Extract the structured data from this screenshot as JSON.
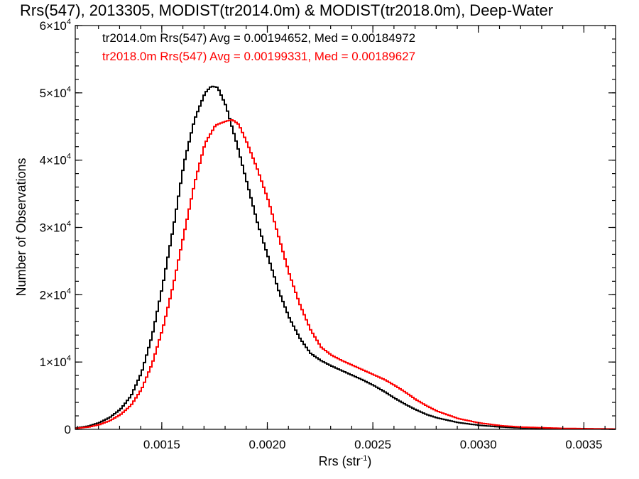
{
  "chart_data": {
    "type": "line",
    "title": "Rrs(547), 2013305, MODIST(tr2014.0m) & MODIST(tr2018.0m), Deep-Water",
    "xlabel": "Rrs (str",
    "xlabel_sup": "-1",
    "xlabel_close": ")",
    "ylabel": "Number of Observations",
    "xlim": [
      0.00109,
      0.00365
    ],
    "ylim": [
      0,
      60000
    ],
    "xticks": [
      {
        "value": 0.0015,
        "label": "0.0015"
      },
      {
        "value": 0.002,
        "label": "0.0020"
      },
      {
        "value": 0.0025,
        "label": "0.0025"
      },
      {
        "value": 0.003,
        "label": "0.0030"
      },
      {
        "value": 0.0035,
        "label": "0.0035"
      }
    ],
    "yticks": [
      {
        "value": 0,
        "mant": "0",
        "exp": ""
      },
      {
        "value": 10000,
        "mant": "1×10",
        "exp": "4"
      },
      {
        "value": 20000,
        "mant": "2×10",
        "exp": "4"
      },
      {
        "value": 30000,
        "mant": "3×10",
        "exp": "4"
      },
      {
        "value": 40000,
        "mant": "4×10",
        "exp": "4"
      },
      {
        "value": 50000,
        "mant": "5×10",
        "exp": "4"
      },
      {
        "value": 60000,
        "mant": "6×10",
        "exp": "4"
      }
    ],
    "grid": false,
    "legend_position": "top-left",
    "series": [
      {
        "name": "tr2014.0m",
        "color": "#000000",
        "legend": "tr2014.0m Rrs(547) Avg = 0.00194652, Med = 0.00184972",
        "points": [
          [
            0.00109,
            200
          ],
          [
            0.00115,
            500
          ],
          [
            0.0012,
            1000
          ],
          [
            0.00125,
            1800
          ],
          [
            0.0013,
            3000
          ],
          [
            0.00135,
            5000
          ],
          [
            0.0014,
            8500
          ],
          [
            0.00145,
            14000
          ],
          [
            0.0015,
            21500
          ],
          [
            0.00155,
            30000
          ],
          [
            0.0016,
            39500
          ],
          [
            0.00165,
            46000
          ],
          [
            0.0017,
            50000
          ],
          [
            0.00173,
            51000
          ],
          [
            0.00176,
            50800
          ],
          [
            0.0018,
            48000
          ],
          [
            0.00185,
            42500
          ],
          [
            0.0019,
            36500
          ],
          [
            0.00195,
            30500
          ],
          [
            0.002,
            25500
          ],
          [
            0.00205,
            20500
          ],
          [
            0.0021,
            16500
          ],
          [
            0.00215,
            13500
          ],
          [
            0.0022,
            11300
          ],
          [
            0.00225,
            10200
          ],
          [
            0.0023,
            9400
          ],
          [
            0.00235,
            8700
          ],
          [
            0.0024,
            8000
          ],
          [
            0.00245,
            7300
          ],
          [
            0.0025,
            6500
          ],
          [
            0.00255,
            5600
          ],
          [
            0.0026,
            4600
          ],
          [
            0.00265,
            3700
          ],
          [
            0.0027,
            2900
          ],
          [
            0.00275,
            2200
          ],
          [
            0.0028,
            1700
          ],
          [
            0.0029,
            1000
          ],
          [
            0.003,
            600
          ],
          [
            0.0031,
            350
          ],
          [
            0.0032,
            200
          ],
          [
            0.0034,
            90
          ],
          [
            0.00365,
            30
          ]
        ]
      },
      {
        "name": "tr2018.0m",
        "color": "#ff0000",
        "legend": "tr2018.0m Rrs(547) Avg = 0.00199331, Med = 0.00189627",
        "points": [
          [
            0.00109,
            150
          ],
          [
            0.00115,
            350
          ],
          [
            0.0012,
            700
          ],
          [
            0.00125,
            1300
          ],
          [
            0.0013,
            2200
          ],
          [
            0.00135,
            3600
          ],
          [
            0.0014,
            6000
          ],
          [
            0.00145,
            9800
          ],
          [
            0.0015,
            15000
          ],
          [
            0.00155,
            21500
          ],
          [
            0.0016,
            29000
          ],
          [
            0.00165,
            36500
          ],
          [
            0.0017,
            42500
          ],
          [
            0.00175,
            45200
          ],
          [
            0.0018,
            45800
          ],
          [
            0.00183,
            46000
          ],
          [
            0.00186,
            45300
          ],
          [
            0.0019,
            42500
          ],
          [
            0.00195,
            38500
          ],
          [
            0.002,
            34000
          ],
          [
            0.00205,
            28500
          ],
          [
            0.0021,
            23000
          ],
          [
            0.00215,
            18500
          ],
          [
            0.0022,
            14800
          ],
          [
            0.00225,
            12200
          ],
          [
            0.0023,
            11000
          ],
          [
            0.00235,
            10200
          ],
          [
            0.0024,
            9500
          ],
          [
            0.00245,
            8800
          ],
          [
            0.0025,
            8100
          ],
          [
            0.00255,
            7400
          ],
          [
            0.0026,
            6500
          ],
          [
            0.00265,
            5500
          ],
          [
            0.0027,
            4400
          ],
          [
            0.00275,
            3500
          ],
          [
            0.0028,
            2700
          ],
          [
            0.0029,
            1600
          ],
          [
            0.003,
            950
          ],
          [
            0.0031,
            550
          ],
          [
            0.0032,
            330
          ],
          [
            0.0034,
            140
          ],
          [
            0.00365,
            50
          ]
        ]
      }
    ]
  }
}
